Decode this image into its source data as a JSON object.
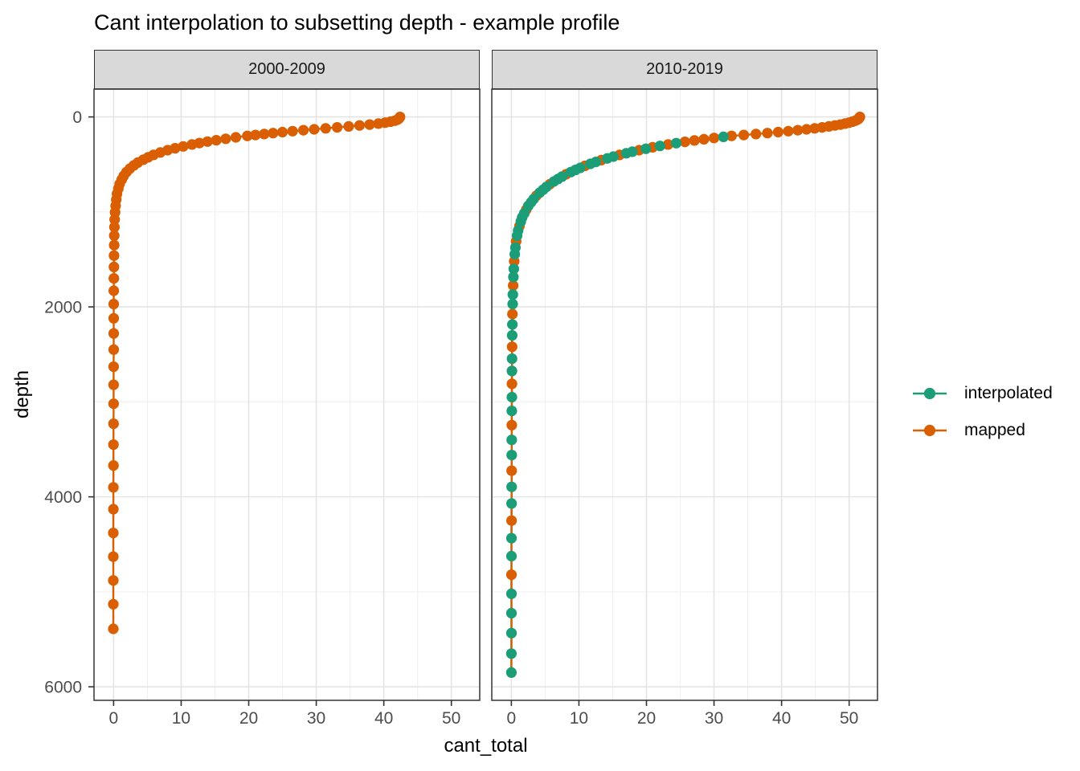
{
  "title": "Cant interpolation to subsetting depth - example profile",
  "axes": {
    "x_label": "cant_total",
    "y_label": "depth",
    "x_ticks": [
      0,
      10,
      20,
      30,
      40,
      50
    ],
    "x_minor": [
      5,
      15,
      25,
      35,
      45
    ],
    "y_ticks": [
      0,
      2000,
      4000,
      6000
    ],
    "y_minor": [
      1000,
      3000,
      5000
    ],
    "x_domain": [
      -2.9,
      54.2
    ],
    "y_domain": [
      -292.5,
      6142.5
    ]
  },
  "legend": {
    "items": [
      {
        "label": "interpolated",
        "color": "#1B9E77"
      },
      {
        "label": "mapped",
        "color": "#D95F02"
      }
    ]
  },
  "theme": {
    "panel_background": "#FFFFFF",
    "panel_border": "#333333",
    "grid_major": "#E4E4E4",
    "grid_minor": "#F0F0F0",
    "strip_fill": "#D9D9D9",
    "tick_color": "#333333",
    "axis_text_color": "#4D4D4D"
  },
  "chart_data": {
    "type": "line",
    "title": "Cant interpolation to subsetting depth - example profile",
    "xlabel": "cant_total",
    "ylabel": "depth",
    "y_reversed": true,
    "xlim": [
      -2.9,
      54.2
    ],
    "ylim": [
      6142.5,
      -292.5
    ],
    "grid": true,
    "legend_position": "right",
    "type_key": {
      "m": "mapped",
      "i": "interpolated"
    },
    "series_colors": {
      "mapped": "#D95F02",
      "interpolated": "#1B9E77"
    },
    "point_format": "[depth, cant_total, type]",
    "facets": [
      {
        "label": "2000-2009",
        "all_type": "m",
        "points": [
          [
            0,
            42.4
          ],
          [
            10,
            42.3
          ],
          [
            20,
            42.2
          ],
          [
            30,
            42.0
          ],
          [
            40,
            41.6
          ],
          [
            50,
            41.0
          ],
          [
            60,
            40.2
          ],
          [
            70,
            39.2
          ],
          [
            80,
            37.9
          ],
          [
            90,
            36.4
          ],
          [
            100,
            34.8
          ],
          [
            110,
            33.1
          ],
          [
            120,
            31.4
          ],
          [
            130,
            29.7
          ],
          [
            140,
            28.1
          ],
          [
            150,
            26.5
          ],
          [
            160,
            25.0
          ],
          [
            170,
            23.6
          ],
          [
            180,
            22.3
          ],
          [
            190,
            21.0
          ],
          [
            200,
            19.8
          ],
          [
            215,
            18.1
          ],
          [
            230,
            16.6
          ],
          [
            245,
            15.2
          ],
          [
            260,
            13.9
          ],
          [
            275,
            12.7
          ],
          [
            290,
            11.6
          ],
          [
            310,
            10.3
          ],
          [
            330,
            9.1
          ],
          [
            350,
            8.0
          ],
          [
            375,
            6.9
          ],
          [
            400,
            5.9
          ],
          [
            425,
            5.1
          ],
          [
            450,
            4.4
          ],
          [
            480,
            3.6
          ],
          [
            510,
            3.0
          ],
          [
            545,
            2.4
          ],
          [
            580,
            1.9
          ],
          [
            620,
            1.5
          ],
          [
            660,
            1.2
          ],
          [
            705,
            0.9
          ],
          [
            755,
            0.7
          ],
          [
            810,
            0.5
          ],
          [
            870,
            0.4
          ],
          [
            935,
            0.3
          ],
          [
            1005,
            0.22
          ],
          [
            1080,
            0.16
          ],
          [
            1160,
            0.12
          ],
          [
            1250,
            0.1
          ],
          [
            1350,
            0.08
          ],
          [
            1460,
            0.06
          ],
          [
            1580,
            0.05
          ],
          [
            1700,
            0.04
          ],
          [
            1830,
            0.03
          ],
          [
            1970,
            0.02
          ],
          [
            2120,
            0.02
          ],
          [
            2280,
            0.01
          ],
          [
            2450,
            0.01
          ],
          [
            2630,
            0.0
          ],
          [
            2820,
            0.0
          ],
          [
            3020,
            0.0
          ],
          [
            3230,
            -0.01
          ],
          [
            3450,
            -0.02
          ],
          [
            3670,
            -0.02
          ],
          [
            3900,
            -0.03
          ],
          [
            4130,
            -0.03
          ],
          [
            4380,
            -0.04
          ],
          [
            4630,
            -0.04
          ],
          [
            4880,
            -0.05
          ],
          [
            5130,
            -0.05
          ],
          [
            5390,
            -0.05
          ]
        ]
      },
      {
        "label": "2010-2019",
        "points": [
          [
            0,
            51.6,
            "m"
          ],
          [
            10,
            51.5,
            "m"
          ],
          [
            20,
            51.4,
            "m"
          ],
          [
            30,
            51.2,
            "m"
          ],
          [
            40,
            50.9,
            "m"
          ],
          [
            50,
            50.5,
            "m"
          ],
          [
            60,
            50.0,
            "m"
          ],
          [
            70,
            49.4,
            "m"
          ],
          [
            80,
            48.7,
            "m"
          ],
          [
            90,
            47.9,
            "m"
          ],
          [
            100,
            47.0,
            "m"
          ],
          [
            110,
            46.0,
            "m"
          ],
          [
            120,
            44.9,
            "m"
          ],
          [
            130,
            43.7,
            "m"
          ],
          [
            140,
            42.4,
            "m"
          ],
          [
            150,
            41.0,
            "m"
          ],
          [
            160,
            39.5,
            "m"
          ],
          [
            170,
            37.9,
            "m"
          ],
          [
            180,
            36.2,
            "m"
          ],
          [
            190,
            34.4,
            "m"
          ],
          [
            200,
            32.6,
            "m"
          ],
          [
            210,
            31.4,
            "i"
          ],
          [
            222,
            30.0,
            "m"
          ],
          [
            235,
            28.5,
            "m"
          ],
          [
            248,
            27.1,
            "m"
          ],
          [
            262,
            25.7,
            "m"
          ],
          [
            276,
            24.4,
            "i"
          ],
          [
            290,
            23.2,
            "m"
          ],
          [
            305,
            22.0,
            "i"
          ],
          [
            320,
            20.9,
            "m"
          ],
          [
            335,
            19.9,
            "i"
          ],
          [
            350,
            18.9,
            "m"
          ],
          [
            366,
            17.9,
            "i"
          ],
          [
            382,
            17.0,
            "i"
          ],
          [
            400,
            16.0,
            "m"
          ],
          [
            418,
            15.1,
            "i"
          ],
          [
            436,
            14.2,
            "i"
          ],
          [
            455,
            13.3,
            "m"
          ],
          [
            474,
            12.5,
            "i"
          ],
          [
            494,
            11.7,
            "i"
          ],
          [
            515,
            10.9,
            "m"
          ],
          [
            536,
            10.2,
            "i"
          ],
          [
            558,
            9.5,
            "i"
          ],
          [
            580,
            8.8,
            "i"
          ],
          [
            604,
            8.1,
            "m"
          ],
          [
            628,
            7.5,
            "i"
          ],
          [
            654,
            6.9,
            "i"
          ],
          [
            680,
            6.3,
            "i"
          ],
          [
            708,
            5.7,
            "m"
          ],
          [
            736,
            5.2,
            "i"
          ],
          [
            766,
            4.7,
            "i"
          ],
          [
            797,
            4.2,
            "i"
          ],
          [
            830,
            3.7,
            "m"
          ],
          [
            864,
            3.3,
            "i"
          ],
          [
            900,
            2.9,
            "i"
          ],
          [
            937,
            2.5,
            "i"
          ],
          [
            976,
            2.2,
            "m"
          ],
          [
            1016,
            1.9,
            "i"
          ],
          [
            1058,
            1.6,
            "i"
          ],
          [
            1102,
            1.4,
            "i"
          ],
          [
            1148,
            1.2,
            "m"
          ],
          [
            1196,
            1.0,
            "i"
          ],
          [
            1250,
            0.85,
            "i"
          ],
          [
            1310,
            0.7,
            "m"
          ],
          [
            1375,
            0.6,
            "i"
          ],
          [
            1445,
            0.5,
            "i"
          ],
          [
            1520,
            0.42,
            "m"
          ],
          [
            1600,
            0.36,
            "i"
          ],
          [
            1685,
            0.3,
            "i"
          ],
          [
            1775,
            0.26,
            "m"
          ],
          [
            1870,
            0.22,
            "i"
          ],
          [
            1970,
            0.19,
            "i"
          ],
          [
            2075,
            0.16,
            "m"
          ],
          [
            2185,
            0.14,
            "i"
          ],
          [
            2300,
            0.12,
            "i"
          ],
          [
            2420,
            0.11,
            "m"
          ],
          [
            2545,
            0.1,
            "i"
          ],
          [
            2675,
            0.09,
            "i"
          ],
          [
            2810,
            0.08,
            "m"
          ],
          [
            2950,
            0.07,
            "i"
          ],
          [
            3095,
            0.06,
            "i"
          ],
          [
            3245,
            0.06,
            "m"
          ],
          [
            3400,
            0.05,
            "i"
          ],
          [
            3560,
            0.05,
            "i"
          ],
          [
            3725,
            0.04,
            "m"
          ],
          [
            3895,
            0.04,
            "i"
          ],
          [
            4070,
            0.03,
            "i"
          ],
          [
            4250,
            0.03,
            "m"
          ],
          [
            4435,
            0.02,
            "i"
          ],
          [
            4625,
            0.02,
            "i"
          ],
          [
            4820,
            0.02,
            "m"
          ],
          [
            5020,
            0.01,
            "i"
          ],
          [
            5225,
            0.01,
            "i"
          ],
          [
            5435,
            0.01,
            "i"
          ],
          [
            5650,
            0.0,
            "i"
          ],
          [
            5850,
            0.0,
            "i"
          ]
        ]
      }
    ]
  }
}
